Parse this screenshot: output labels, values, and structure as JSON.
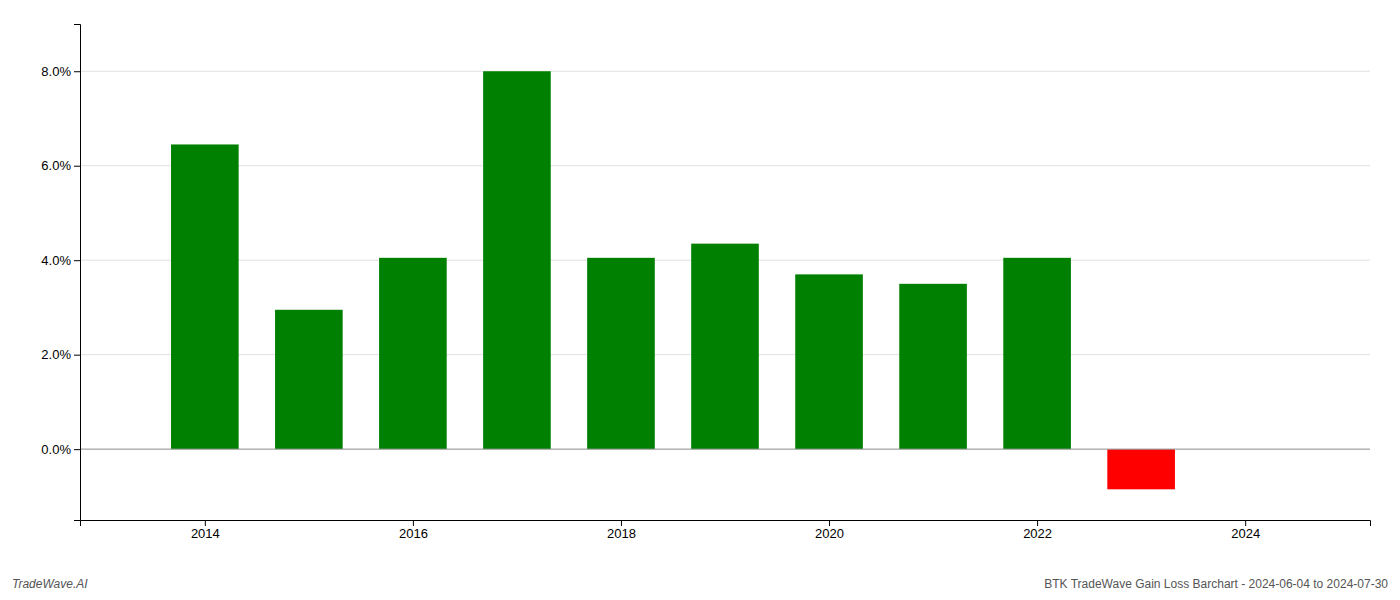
{
  "chart_data": {
    "type": "bar",
    "x": [
      2014,
      2015,
      2016,
      2017,
      2018,
      2019,
      2020,
      2021,
      2022,
      2023
    ],
    "values": [
      6.45,
      2.95,
      4.05,
      8.0,
      4.05,
      4.35,
      3.7,
      3.5,
      4.05,
      -0.85
    ],
    "colors": [
      "#008000",
      "#008000",
      "#008000",
      "#008000",
      "#008000",
      "#008000",
      "#008000",
      "#008000",
      "#008000",
      "#ff0000"
    ],
    "xlim": [
      2012.8,
      2025.2
    ],
    "xticks": [
      2014,
      2016,
      2018,
      2020,
      2022,
      2024
    ],
    "ylim": [
      -1.5,
      9.0
    ],
    "yticks": [
      {
        "value": 0.0,
        "label": "0.0%"
      },
      {
        "value": 2.0,
        "label": "2.0%"
      },
      {
        "value": 4.0,
        "label": "4.0%"
      },
      {
        "value": 6.0,
        "label": "6.0%"
      },
      {
        "value": 8.0,
        "label": "8.0%"
      }
    ],
    "grid": true,
    "annotations": [
      "TradeWave.AI",
      "BTK TradeWave Gain Loss Barchart - 2024-06-04 to 2024-07-30"
    ]
  }
}
